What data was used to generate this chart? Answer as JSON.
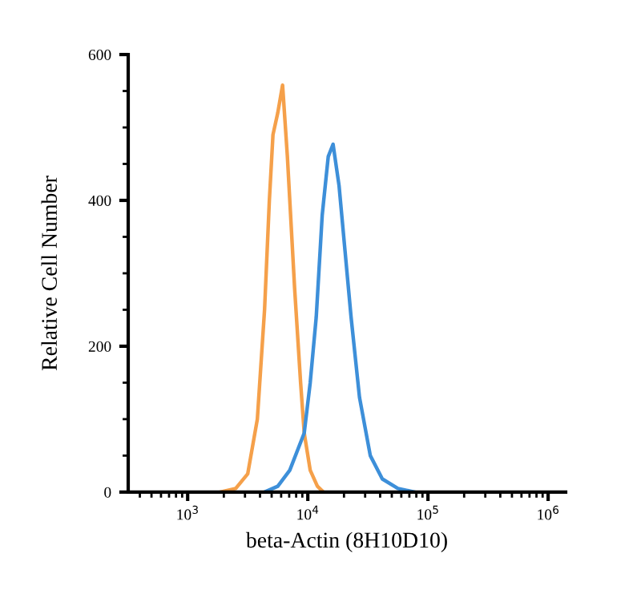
{
  "chart_data": {
    "type": "line",
    "xlabel": "beta-Actin (8H10D10)",
    "ylabel": "Relative Cell Number",
    "log": "x",
    "xlim": [
      320,
      1400000
    ],
    "ylim": [
      0,
      600
    ],
    "xticks": [
      {
        "value": 1000,
        "label": "10$^{3}$"
      },
      {
        "value": 10000,
        "label": "10$^{4}$"
      },
      {
        "value": 100000,
        "label": "10$^{5}$"
      },
      {
        "value": 1000000,
        "label": "10$^{6}$"
      }
    ],
    "yticks": [
      0,
      200,
      400,
      600
    ],
    "grid": false,
    "legend": false,
    "marker": "none",
    "line_style": "solid",
    "series": [
      {
        "color": "#f5a04a",
        "x": [
          1862,
          2512,
          3162,
          3802,
          4365,
          4786,
          5129,
          5623,
          6166,
          6761,
          7762,
          8710,
          9333,
          10470,
          12020,
          13490
        ],
        "values": [
          0,
          5,
          25,
          100,
          250,
          400,
          490,
          520,
          558,
          460,
          280,
          150,
          81,
          30,
          8,
          0
        ]
      },
      {
        "color": "#3d8fd9",
        "x": [
          4365,
          5623,
          7079,
          9333,
          10470,
          11750,
          13180,
          14790,
          16220,
          18200,
          20420,
          22910,
          26920,
          33110,
          41690,
          56230,
          77620
        ],
        "values": [
          0,
          8,
          30,
          81,
          150,
          240,
          380,
          460,
          477,
          420,
          330,
          240,
          130,
          50,
          18,
          5,
          0
        ]
      }
    ]
  }
}
